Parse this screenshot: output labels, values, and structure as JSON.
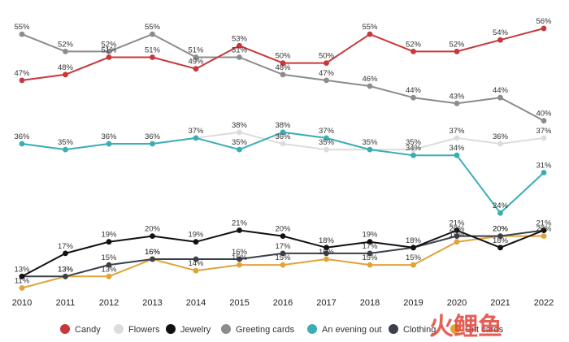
{
  "chart_data": {
    "type": "line",
    "x": [
      "2010",
      "2011",
      "2012",
      "2013",
      "2014",
      "2015",
      "2016",
      "2017",
      "2018",
      "2019",
      "2020",
      "2021",
      "2022"
    ],
    "value_suffix": "%",
    "grid": false,
    "legend_position": "bottom",
    "series": [
      {
        "name": "Candy",
        "color": "#c8373a",
        "values": [
          47,
          48,
          51,
          51,
          49,
          53,
          50,
          50,
          55,
          52,
          52,
          54,
          56
        ]
      },
      {
        "name": "Flowers",
        "color": "#dcdcdc",
        "values": [
          36,
          35,
          36,
          36,
          37,
          38,
          36,
          35,
          35,
          35,
          37,
          36,
          37
        ]
      },
      {
        "name": "Jewelry",
        "color": "#111111",
        "values": [
          13,
          17,
          19,
          20,
          19,
          21,
          20,
          18,
          19,
          18,
          21,
          18,
          21
        ]
      },
      {
        "name": "Greeting cards",
        "color": "#8c8c8c",
        "values": [
          55,
          52,
          52,
          55,
          51,
          51,
          48,
          47,
          46,
          44,
          43,
          44,
          40
        ]
      },
      {
        "name": "An evening out",
        "color": "#3aaeb5",
        "values": [
          36,
          35,
          36,
          36,
          37,
          35,
          38,
          37,
          35,
          34,
          34,
          24,
          31
        ]
      },
      {
        "name": "Clothing",
        "color": "#3a3f4a",
        "values": [
          13,
          13,
          15,
          16,
          16,
          16,
          17,
          17,
          17,
          18,
          20,
          20,
          21
        ]
      },
      {
        "name": "Gift cards",
        "color": "#e0a33a",
        "values": [
          11,
          13,
          13,
          16,
          14,
          15,
          15,
          16,
          15,
          15,
          19,
          20,
          20
        ]
      }
    ],
    "labels_shown": {
      "Flowers": [
        false,
        false,
        false,
        false,
        false,
        true,
        true,
        true,
        false,
        true,
        true,
        true,
        true
      ],
      "Clothing": [
        false,
        true,
        true,
        true,
        false,
        true,
        true,
        false,
        true,
        false,
        true,
        true,
        false
      ],
      "Gift cards": [
        true,
        true,
        true,
        true,
        true,
        true,
        true,
        true,
        true,
        true,
        true,
        true,
        true
      ]
    }
  },
  "watermark": "火鲤鱼"
}
